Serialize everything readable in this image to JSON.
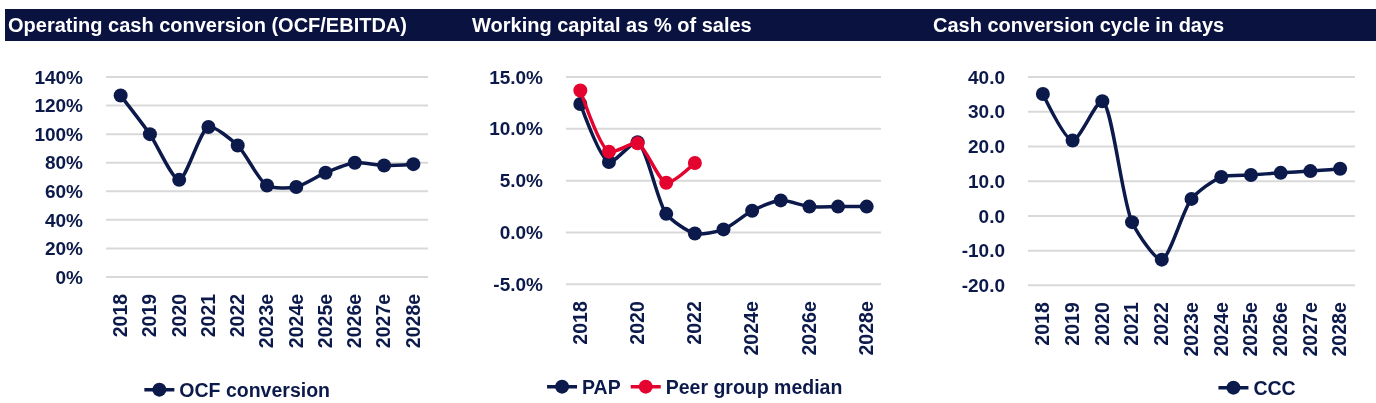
{
  "chart_data": [
    {
      "type": "line",
      "title": "Operating cash conversion (OCF/EBITDA)",
      "categories": [
        "2018",
        "2019",
        "2020",
        "2021",
        "2022",
        "2023e",
        "2024e",
        "2025e",
        "2026e",
        "2027e",
        "2028e"
      ],
      "series": [
        {
          "name": "OCF conversion",
          "color": "#0c1a4b",
          "values": [
            127,
            100,
            68,
            105,
            92,
            64,
            63,
            73,
            80,
            78,
            79
          ]
        }
      ],
      "ylim": [
        0,
        140
      ],
      "yticks": [
        {
          "value": 0,
          "label": "0%"
        },
        {
          "value": 20,
          "label": "20%"
        },
        {
          "value": 40,
          "label": "40%"
        },
        {
          "value": 60,
          "label": "60%"
        },
        {
          "value": 80,
          "label": "80%"
        },
        {
          "value": 100,
          "label": "100%"
        },
        {
          "value": 120,
          "label": "120%"
        },
        {
          "value": 140,
          "label": "140%"
        }
      ],
      "grid": "y",
      "legend": "bottom",
      "marker": "circle",
      "line_style": "solid"
    },
    {
      "type": "line",
      "title": "Working capital as % of sales",
      "categories": [
        "2018",
        null,
        "2020",
        null,
        "2022",
        null,
        "2024e",
        null,
        "2026e",
        null,
        "2028e"
      ],
      "series": [
        {
          "name": "PAP",
          "color": "#0c1a4b",
          "values": [
            12.4,
            6.8,
            8.7,
            1.8,
            -0.1,
            0.3,
            2.1,
            3.1,
            2.5,
            2.5,
            2.5
          ]
        },
        {
          "name": "Peer group median",
          "color": "#e4032e",
          "values": [
            13.7,
            7.8,
            8.6,
            4.8,
            6.7,
            null,
            null,
            null,
            null,
            null,
            null
          ]
        }
      ],
      "ylim": [
        -5,
        15
      ],
      "yticks": [
        {
          "value": -5,
          "label": "-5.0%"
        },
        {
          "value": 0,
          "label": "0.0%"
        },
        {
          "value": 5,
          "label": "5.0%"
        },
        {
          "value": 10,
          "label": "10.0%"
        },
        {
          "value": 15,
          "label": "15.0%"
        }
      ],
      "grid": "y",
      "legend": "bottom",
      "marker": "circle",
      "line_style": "solid"
    },
    {
      "type": "line",
      "title": "Cash conversion cycle in days",
      "categories": [
        "2018",
        "2019",
        "2020",
        "2021",
        "2022",
        "2023e",
        "2024e",
        "2025e",
        "2026e",
        "2027e",
        "2028e"
      ],
      "series": [
        {
          "name": "CCC",
          "color": "#0c1a4b",
          "values": [
            35.1,
            21.7,
            33.0,
            -1.8,
            -12.6,
            4.9,
            11.2,
            11.8,
            12.4,
            12.9,
            13.6
          ]
        }
      ],
      "ylim": [
        -20,
        40
      ],
      "yticks": [
        {
          "value": -20,
          "label": "-20.0"
        },
        {
          "value": -10,
          "label": "-10.0"
        },
        {
          "value": 0,
          "label": "0.0"
        },
        {
          "value": 10,
          "label": "10.0"
        },
        {
          "value": 20,
          "label": "20.0"
        },
        {
          "value": 30,
          "label": "30.0"
        },
        {
          "value": 40,
          "label": "40.0"
        }
      ],
      "grid": "y",
      "legend": "bottom",
      "marker": "circle",
      "line_style": "solid"
    }
  ]
}
